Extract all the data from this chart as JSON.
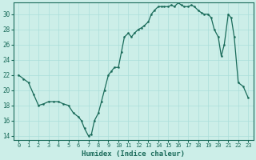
{
  "xlabel": "Humidex (Indice chaleur)",
  "xlim": [
    -0.5,
    23.5
  ],
  "ylim": [
    13.5,
    31.5
  ],
  "yticks": [
    14,
    16,
    18,
    20,
    22,
    24,
    26,
    28,
    30
  ],
  "xticks": [
    0,
    1,
    2,
    3,
    4,
    5,
    6,
    7,
    8,
    9,
    10,
    11,
    12,
    13,
    14,
    15,
    16,
    17,
    18,
    19,
    20,
    21,
    22,
    23
  ],
  "bg_color": "#cceee8",
  "grid_color": "#aaddda",
  "line_color": "#1a6b5a",
  "x": [
    0,
    0.5,
    1,
    1.5,
    2,
    2.5,
    3,
    3.5,
    4,
    4.5,
    5,
    5.5,
    6,
    6.3,
    6.6,
    7,
    7.3,
    7.6,
    8,
    8.3,
    8.6,
    9,
    9.3,
    9.6,
    10,
    10.3,
    10.6,
    11,
    11.3,
    11.6,
    12,
    12.3,
    12.6,
    13,
    13.3,
    13.6,
    14,
    14.3,
    14.6,
    15,
    15.3,
    15.6,
    16,
    16.3,
    16.6,
    17,
    17.3,
    17.6,
    18,
    18.3,
    18.6,
    19,
    19.3,
    19.6,
    20,
    20.3,
    20.6,
    21,
    21.3,
    21.6,
    22,
    22.5,
    23
  ],
  "y": [
    22,
    21.5,
    21,
    19.5,
    18,
    18.2,
    18.5,
    18.5,
    18.5,
    18.2,
    18,
    17,
    16.5,
    16,
    15,
    14,
    14.2,
    16,
    17,
    18.5,
    20,
    22,
    22.5,
    23,
    23,
    25,
    27,
    27.5,
    27,
    27.5,
    28,
    28.2,
    28.5,
    29,
    30,
    30.5,
    31,
    31,
    31,
    31,
    31.2,
    31,
    31.5,
    31.2,
    31,
    31,
    31.2,
    31,
    30.5,
    30.2,
    30,
    30,
    29.5,
    28,
    27,
    24.5,
    26,
    30,
    29.5,
    27,
    21,
    20.5,
    19
  ]
}
